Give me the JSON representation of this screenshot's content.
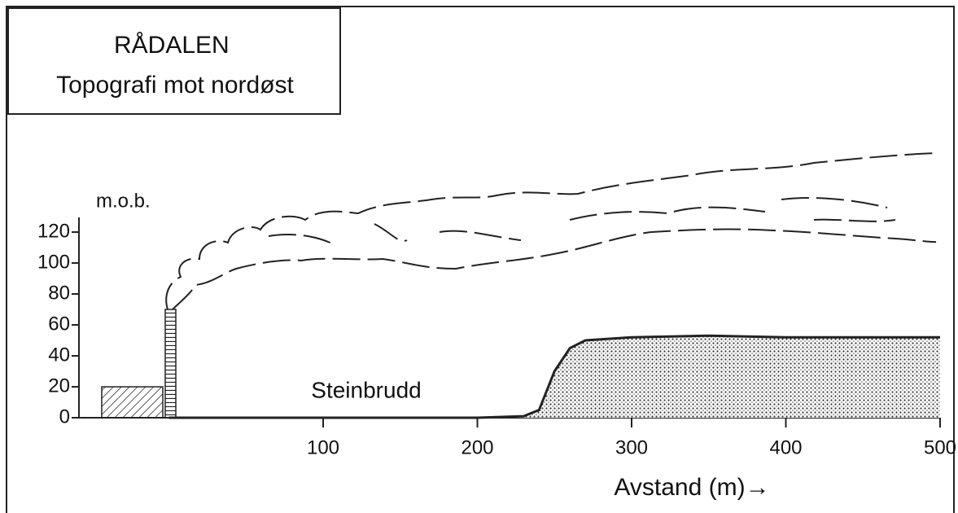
{
  "title": "RÅDALEN",
  "subtitle": "Topografi mot nordøst",
  "chart_data": {
    "type": "area",
    "y_label": "m.o.b.",
    "x_label": "Avstand (m)→",
    "annotation": "Steinbrudd",
    "x": [
      0,
      50,
      100,
      150,
      200,
      230,
      240,
      250,
      260,
      270,
      300,
      350,
      400,
      450,
      500
    ],
    "values": [
      0,
      0,
      0,
      0,
      0,
      1,
      5,
      30,
      45,
      50,
      52,
      53,
      52,
      52,
      52
    ],
    "xlim": [
      0,
      500
    ],
    "xticks": [
      100,
      200,
      300,
      400,
      500
    ],
    "ylim": [
      0,
      120
    ],
    "yticks": [
      0,
      20,
      40,
      60,
      80,
      100,
      120
    ],
    "color": "#222"
  }
}
